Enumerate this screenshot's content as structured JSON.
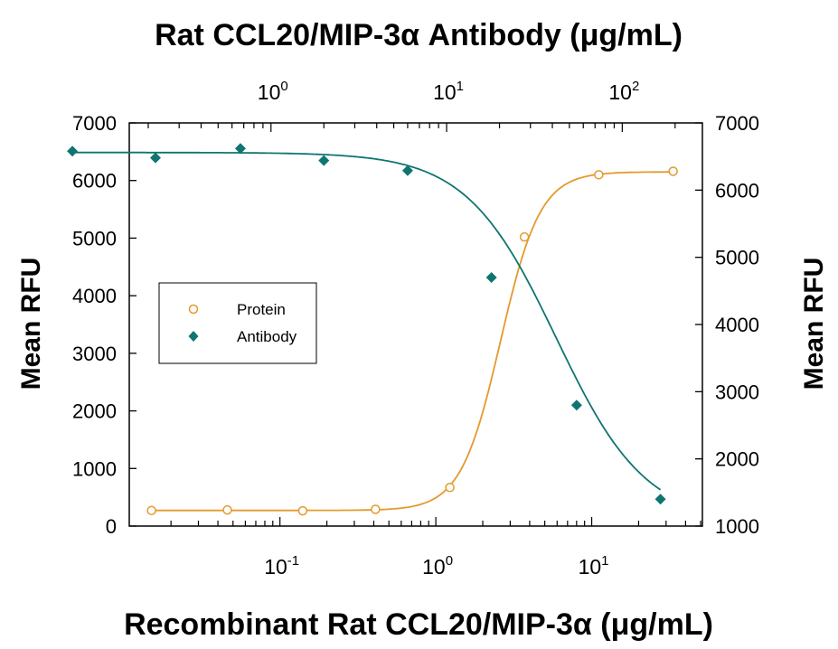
{
  "chart_data": {
    "type": "scatter",
    "title_top": "Rat CCL20/MIP-3α Antibody (μg/mL)",
    "xlabel": "Recombinant Rat CCL20/MIP-3α (μg/mL)",
    "ylabel_left": "Mean RFU",
    "ylabel_right": "Mean RFU",
    "x_bottom_scale": "log",
    "x_bottom_ticks": [
      {
        "value": 0.1,
        "base": "10",
        "exp": "-1"
      },
      {
        "value": 1,
        "base": "10",
        "exp": "0"
      },
      {
        "value": 10,
        "base": "10",
        "exp": "1"
      }
    ],
    "x_top_scale": "log",
    "x_top_ticks": [
      {
        "value": 1,
        "base": "10",
        "exp": "0"
      },
      {
        "value": 10,
        "base": "10",
        "exp": "1"
      },
      {
        "value": 100,
        "base": "10",
        "exp": "2"
      }
    ],
    "y_left_ticks": [
      "0",
      "1000",
      "2000",
      "3000",
      "4000",
      "5000",
      "6000",
      "7000"
    ],
    "y_left_lim": [
      0,
      7000
    ],
    "y_right_ticks": [
      "1000",
      "2000",
      "3000",
      "4000",
      "5000",
      "6000",
      "7000"
    ],
    "y_right_lim": [
      1000,
      7000
    ],
    "legend_position": "center-left",
    "series": [
      {
        "name": "Protein",
        "marker": "open-circle",
        "color": "#E39A2D",
        "axis": "bottom-left",
        "x": [
          0.015,
          0.046,
          0.14,
          0.41,
          1.23,
          3.7,
          11.1,
          33.3
        ],
        "y": [
          270,
          280,
          265,
          290,
          670,
          5020,
          6100,
          6160
        ]
      },
      {
        "name": "Antibody",
        "marker": "filled-diamond",
        "color": "#0F7570",
        "axis": "top-right",
        "x": [
          0.074,
          0.22,
          0.67,
          2.0,
          6.0,
          18.0,
          55.0,
          165.0
        ],
        "y": [
          6580,
          6480,
          6620,
          6440,
          6290,
          4700,
          2800,
          1400
        ]
      }
    ]
  }
}
